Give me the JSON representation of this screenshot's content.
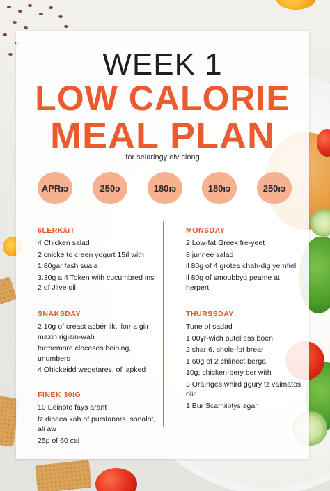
{
  "header": {
    "week": "WEEK 1",
    "title_line1": "LOW CALORIE",
    "title_line2": "MEAL PLAN",
    "subtitle": "for selaringɣ eiv clong"
  },
  "calorie_badges": [
    "APRıɔ",
    "250ɔ",
    "180ıɔ",
    "180ıɔ",
    "250ıɔ"
  ],
  "meal_sections": [
    {
      "title": "6LERKƛıT",
      "items": [
        "4 Chicken salad",
        "2 cnicke to creen yogurt 15ıl with",
        "1 80gar fash suala",
        "3.30g a 4 Token with cucumbred ins 2 of Jlive oil"
      ]
    },
    {
      "title": "MONSDAY",
      "items": [
        "2 Low-fat Greek fre-yeet",
        "8 junnee salad",
        "il 80g of 4 grotea chah-dig yernfiel",
        "il 80g of smoubbɣg peame at herpert"
      ]
    },
    {
      "title": "SNAKSDAY",
      "items": [
        "2 10g of creast acbér lik, iloır a giir maxin rigiain-wah",
        "tormemore cloceses beining, unumbers",
        "4 Ohickeidd wegetares, of lapked"
      ]
    },
    {
      "title": "THURSSDAY",
      "items": [
        "Tune of sadad",
        "1 00ɣr-wich putel ess boen",
        "2 shar 6, shole-fot brear",
        "1 60g of 2 chlinect berga",
        "10g; chicken-bery ber with",
        "3 Oraınges whird ggury tz vaimatos olir",
        "1 Bur Scamiibtys agar"
      ]
    },
    {
      "title": "FINEK 30IG",
      "items": [
        "10 Eeinote fays arant",
        "tz.dibaea kah of purstanors, sonalot, ali aw",
        "25p of 60 cal"
      ]
    }
  ],
  "colors": {
    "accent": "#ec5a2f",
    "badge": "#f6b191",
    "text": "#222222"
  }
}
